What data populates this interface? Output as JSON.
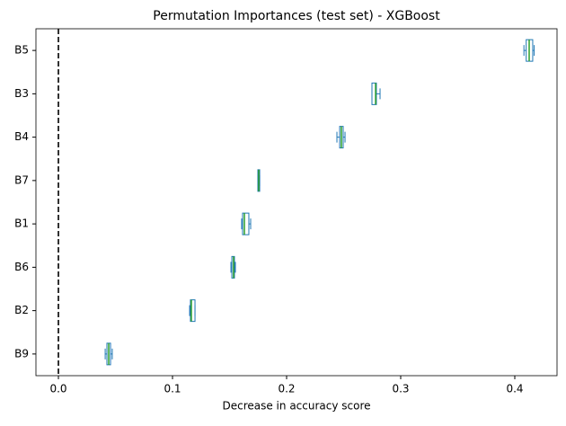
{
  "chart_data": {
    "type": "boxplot",
    "orientation": "horizontal",
    "title": "Permutation Importances (test set) - XGBoost",
    "xlabel": "Decrease in accuracy score",
    "categories": [
      "B5",
      "B3",
      "B4",
      "B7",
      "B1",
      "B6",
      "B2",
      "B9"
    ],
    "boxes": [
      {
        "whislo": 0.408,
        "q1": 0.41,
        "med": 0.4126,
        "q3": 0.4157,
        "whishi": 0.417
      },
      {
        "whislo": 0.2748,
        "q1": 0.2748,
        "med": 0.278,
        "q3": 0.2787,
        "whishi": 0.2819
      },
      {
        "whislo": 0.2441,
        "q1": 0.2465,
        "med": 0.248,
        "q3": 0.2496,
        "whishi": 0.2512
      },
      {
        "whislo": 0.1748,
        "q1": 0.1748,
        "med": 0.1756,
        "q3": 0.1764,
        "whishi": 0.1764
      },
      {
        "whislo": 0.1606,
        "q1": 0.1614,
        "med": 0.163,
        "q3": 0.1669,
        "whishi": 0.1685
      },
      {
        "whislo": 0.1512,
        "q1": 0.152,
        "med": 0.1535,
        "q3": 0.1543,
        "whishi": 0.1551
      },
      {
        "whislo": 0.115,
        "q1": 0.1157,
        "med": 0.1165,
        "q3": 0.1197,
        "whishi": 0.1197
      },
      {
        "whislo": 0.041,
        "q1": 0.0425,
        "med": 0.0441,
        "q3": 0.0457,
        "whishi": 0.0472
      }
    ],
    "box_color": "#1f77b4",
    "median_color": "#2ca02c",
    "reference_line": 0,
    "xlim": [
      -0.0197,
      0.437
    ],
    "xticks": [
      {
        "value": 0,
        "label": "0.0"
      },
      0.1,
      0.2,
      0.3,
      0.4
    ]
  }
}
